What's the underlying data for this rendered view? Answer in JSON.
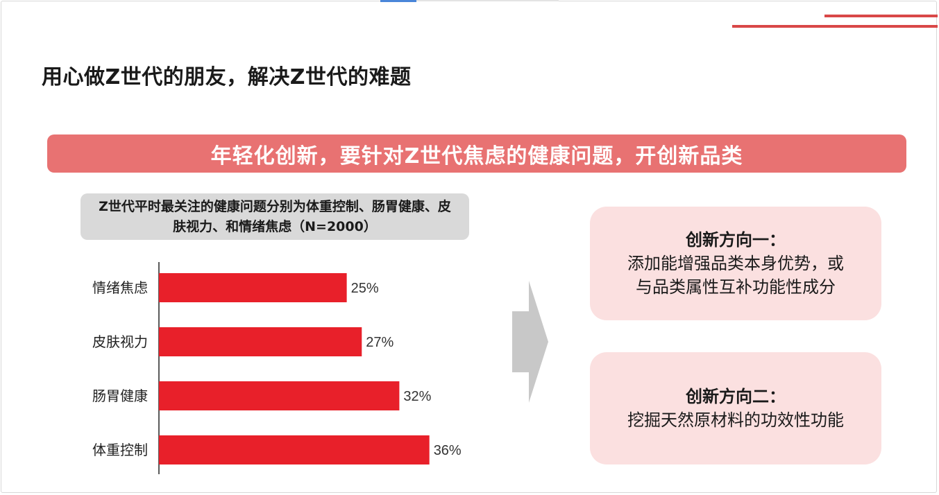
{
  "page": {
    "title": "用心做Z世代的朋友，解决Z世代的难题",
    "banner": "年轻化创新，要针对Z世代焦虑的健康问题，开创新品类"
  },
  "chart_data": {
    "type": "bar",
    "orientation": "horizontal",
    "title": "Z世代平时最关注的健康问题分别为体重控制、肠胃健康、皮肤视力、和情绪焦虑（N=2000）",
    "categories": [
      "情绪焦虑",
      "皮肤视力",
      "肠胃健康",
      "体重控制"
    ],
    "values": [
      25,
      27,
      32,
      36
    ],
    "value_labels": [
      "25%",
      "27%",
      "32%",
      "36%"
    ],
    "unit": "%",
    "xlim": [
      0,
      40
    ],
    "grid": false,
    "legend": "none",
    "bar_color": "#e8202a"
  },
  "directions": [
    {
      "title": "创新方向一：",
      "lines": [
        "添加能增强品类本身优势，或",
        "与品类属性互补功能性成分"
      ]
    },
    {
      "title": "创新方向二：",
      "lines": [
        "挖掘天然原材料的功效性功能"
      ]
    }
  ],
  "colors": {
    "banner": "#e87272",
    "card": "#fbe0e0",
    "accent_line": "#d94747",
    "arrow": "#c8c8c8"
  },
  "icons": {
    "arrow": "right-arrow-icon"
  }
}
